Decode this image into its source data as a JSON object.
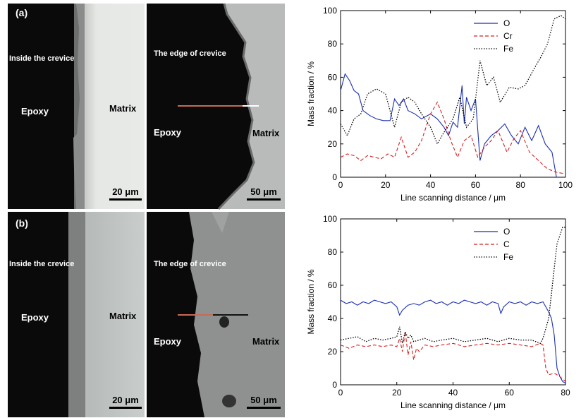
{
  "colors": {
    "series_O": "#1a2fb0",
    "series_Cr": "#d42020",
    "series_C": "#d42020",
    "series_Fe": "#000000"
  },
  "micrographs": [
    {
      "panel_label": "(a)",
      "left": {
        "crevice_label": "Inside the crevice",
        "epoxy_label": "Epoxy",
        "matrix_label": "Matrix",
        "scale_bar": "20 μm"
      },
      "right": {
        "crevice_label": "The edge of crevice",
        "epoxy_label": "Epoxy",
        "matrix_label": "Matrix",
        "scale_bar": "50 μm"
      }
    },
    {
      "panel_label": "(b)",
      "left": {
        "crevice_label": "Inside the crevice",
        "epoxy_label": "Epoxy",
        "matrix_label": "Matrix",
        "scale_bar": "20 μm"
      },
      "right": {
        "crevice_label": "The edge of crevice",
        "epoxy_label": "Epoxy",
        "matrix_label": "Matrix",
        "scale_bar": "50 μm"
      }
    }
  ],
  "chart_data": [
    {
      "type": "line",
      "xlabel": "Line scanning distance / μm",
      "ylabel": "Mass fraction / %",
      "xlim": [
        0,
        100
      ],
      "ylim": [
        0,
        100
      ],
      "xticks": [
        0,
        20,
        40,
        60,
        80,
        100
      ],
      "yticks": [
        0,
        20,
        40,
        60,
        80,
        100
      ],
      "legend_position": "top-right",
      "series": [
        {
          "name": "O",
          "style": "solid",
          "color": "#1a2fb0",
          "x": [
            0,
            2,
            4,
            6,
            8,
            10,
            13,
            16,
            19,
            22,
            24,
            26,
            28,
            30,
            33,
            36,
            40,
            43,
            46,
            48,
            50,
            52,
            54,
            55,
            56,
            58,
            60,
            62,
            64,
            67,
            70,
            73,
            76,
            79,
            82,
            85,
            88,
            91,
            94,
            96
          ],
          "y": [
            52,
            62,
            58,
            52,
            50,
            40,
            37,
            35,
            34,
            34,
            47,
            43,
            47,
            40,
            38,
            35,
            38,
            35,
            30,
            25,
            33,
            30,
            55,
            32,
            48,
            40,
            47,
            10,
            20,
            25,
            28,
            32,
            25,
            20,
            30,
            22,
            31,
            20,
            15,
            0
          ]
        },
        {
          "name": "Cr",
          "style": "dashed",
          "color": "#d42020",
          "x": [
            0,
            3,
            6,
            9,
            12,
            15,
            18,
            21,
            24,
            27,
            30,
            33,
            36,
            40,
            43,
            46,
            49,
            52,
            55,
            58,
            61,
            64,
            67,
            70,
            74,
            77,
            80,
            84,
            88,
            92,
            96,
            100
          ],
          "y": [
            12,
            14,
            13,
            10,
            13,
            12,
            11,
            14,
            12,
            24,
            12,
            15,
            22,
            38,
            45,
            35,
            22,
            12,
            22,
            25,
            12,
            18,
            22,
            28,
            15,
            23,
            28,
            15,
            10,
            5,
            3,
            2
          ]
        },
        {
          "name": "Fe",
          "style": "dotted",
          "color": "#000000",
          "x": [
            0,
            3,
            6,
            9,
            12,
            16,
            20,
            24,
            27,
            30,
            33,
            36,
            40,
            43,
            46,
            50,
            53,
            56,
            59,
            62,
            65,
            68,
            71,
            75,
            79,
            82,
            86,
            89,
            92,
            95,
            98,
            100
          ],
          "y": [
            32,
            25,
            35,
            38,
            50,
            53,
            50,
            30,
            45,
            48,
            45,
            38,
            30,
            20,
            27,
            35,
            48,
            30,
            35,
            70,
            55,
            60,
            45,
            54,
            53,
            55,
            65,
            72,
            80,
            95,
            97,
            95
          ]
        }
      ]
    },
    {
      "type": "line",
      "xlabel": "Line scanning distance / μm",
      "ylabel": "Mass fraction / %",
      "xlim": [
        0,
        80
      ],
      "ylim": [
        0,
        100
      ],
      "xticks": [
        0,
        20,
        40,
        60,
        80
      ],
      "yticks": [
        0,
        20,
        40,
        60,
        80,
        100
      ],
      "legend_position": "top-right",
      "series": [
        {
          "name": "O",
          "style": "solid",
          "color": "#1a2fb0",
          "x": [
            0,
            2,
            4,
            6,
            8,
            10,
            12,
            14,
            16,
            18,
            20,
            21,
            22,
            24,
            26,
            28,
            30,
            32,
            34,
            36,
            38,
            40,
            42,
            44,
            46,
            48,
            50,
            52,
            54,
            56,
            57,
            58,
            60,
            62,
            64,
            66,
            68,
            70,
            72,
            73,
            74,
            75,
            76,
            77,
            78,
            79,
            80
          ],
          "y": [
            51,
            49,
            50,
            48,
            50,
            49,
            51,
            50,
            49,
            50,
            47,
            42,
            45,
            48,
            49,
            48,
            50,
            51,
            49,
            50,
            48,
            50,
            49,
            51,
            50,
            49,
            50,
            48,
            50,
            49,
            43,
            47,
            50,
            49,
            50,
            48,
            50,
            49,
            50,
            47,
            44,
            40,
            30,
            10,
            5,
            2,
            1
          ]
        },
        {
          "name": "C",
          "style": "dashed",
          "color": "#d42020",
          "x": [
            0,
            3,
            6,
            9,
            12,
            15,
            18,
            20,
            21,
            22,
            23,
            24,
            25,
            26,
            27,
            28,
            30,
            33,
            36,
            40,
            44,
            48,
            52,
            56,
            60,
            64,
            68,
            71,
            72,
            73,
            74,
            76,
            78,
            80
          ],
          "y": [
            24,
            22,
            24,
            23,
            24,
            23,
            24,
            23,
            28,
            20,
            32,
            18,
            26,
            15,
            22,
            20,
            24,
            23,
            24,
            25,
            23,
            24,
            25,
            24,
            25,
            24,
            23,
            25,
            24,
            10,
            6,
            7,
            5,
            2
          ]
        },
        {
          "name": "Fe",
          "style": "dotted",
          "color": "#000000",
          "x": [
            0,
            3,
            6,
            9,
            12,
            15,
            18,
            20,
            21,
            22,
            23,
            24,
            25,
            26,
            28,
            30,
            33,
            36,
            40,
            44,
            48,
            52,
            56,
            60,
            64,
            68,
            71,
            72,
            74,
            75,
            76,
            77,
            78,
            79,
            80
          ],
          "y": [
            27,
            28,
            29,
            26,
            28,
            27,
            28,
            29,
            35,
            25,
            32,
            28,
            30,
            26,
            27,
            28,
            26,
            27,
            28,
            26,
            27,
            28,
            26,
            28,
            27,
            27,
            25,
            28,
            40,
            55,
            70,
            85,
            90,
            95,
            95
          ]
        }
      ]
    }
  ]
}
